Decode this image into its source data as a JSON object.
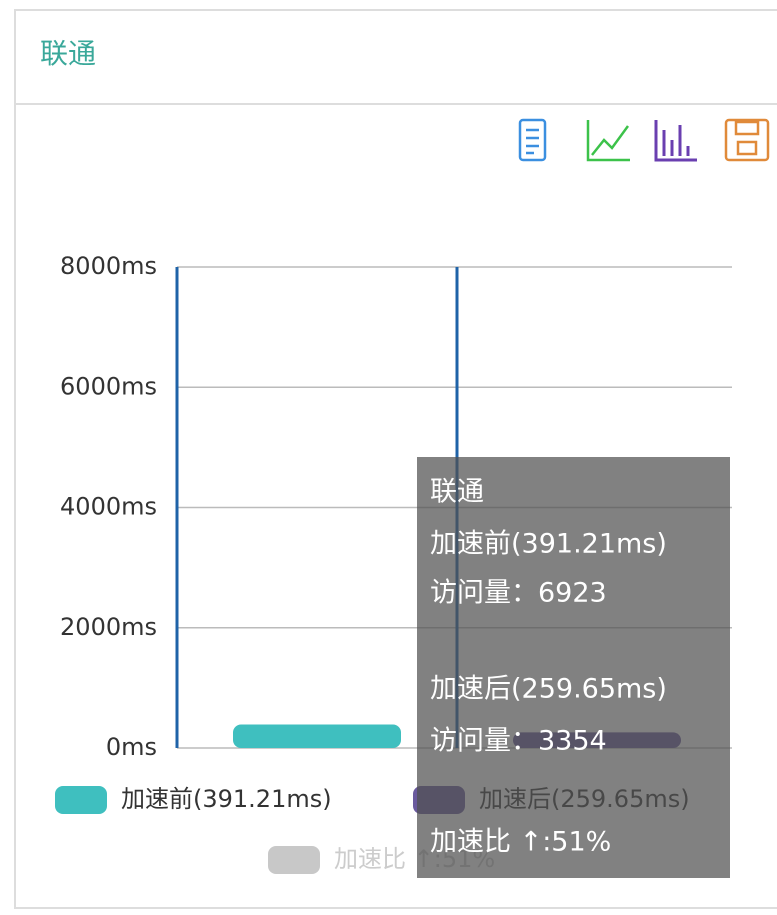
{
  "panel_title": "联通",
  "chart_data": {
    "type": "bar",
    "categories": [
      null,
      null
    ],
    "series": [
      {
        "name": "加速前(391.21ms)",
        "color": "#3fbfbf",
        "values": [
          391.21,
          null
        ]
      },
      {
        "name": "加速后(259.65ms)",
        "color": "#6a5a9e",
        "values": [
          null,
          259.65
        ]
      },
      {
        "name": "加速比 ↑:51%",
        "color": "#c8c8c8",
        "values": [
          null,
          null
        ],
        "hidden": true
      }
    ],
    "ylim": [
      0,
      8000
    ],
    "yticks": [
      {
        "value": 0,
        "label": "0ms"
      },
      {
        "value": 2000,
        "label": "2000ms"
      },
      {
        "value": 4000,
        "label": "4000ms"
      },
      {
        "value": 6000,
        "label": "6000ms"
      },
      {
        "value": 8000,
        "label": "8000ms"
      }
    ],
    "grid": true,
    "tooltip": {
      "lines": [
        "联通",
        "加速前(391.21ms)",
        "访问量：6923",
        "加速后(259.65ms)",
        "访问量：3354",
        "加速比 ↑:51%"
      ]
    }
  }
}
